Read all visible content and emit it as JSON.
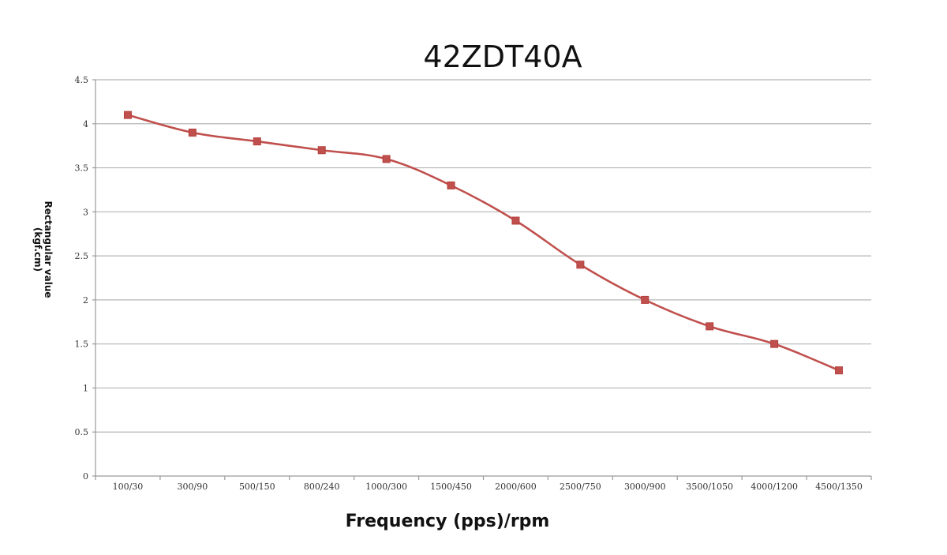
{
  "chart_data": {
    "type": "line",
    "title": "42ZDT40A",
    "xlabel": "Frequency (pps)/rpm",
    "ylabel_line1": "Rectangular value",
    "ylabel_line2": "(kgf.cm)",
    "categories": [
      "100/30",
      "300/90",
      "500/150",
      "800/240",
      "1000/300",
      "1500/450",
      "2000/600",
      "2500/750",
      "3000/900",
      "3500/1050",
      "4000/1200",
      "4500/1350"
    ],
    "series": [
      {
        "values": [
          4.1,
          3.9,
          3.8,
          3.7,
          3.6,
          3.3,
          2.9,
          2.4,
          2.0,
          1.7,
          1.5,
          1.2
        ]
      }
    ],
    "ylim": [
      0,
      4.5
    ],
    "yticks": [
      "0",
      "0.5",
      "1",
      "1.5",
      "2",
      "2.5",
      "3",
      "3.5",
      "4",
      "4.5"
    ],
    "grid": true,
    "legend": "none",
    "line_color": "#c0504d",
    "marker_color": "#c0504d",
    "marker_shape": "square"
  }
}
